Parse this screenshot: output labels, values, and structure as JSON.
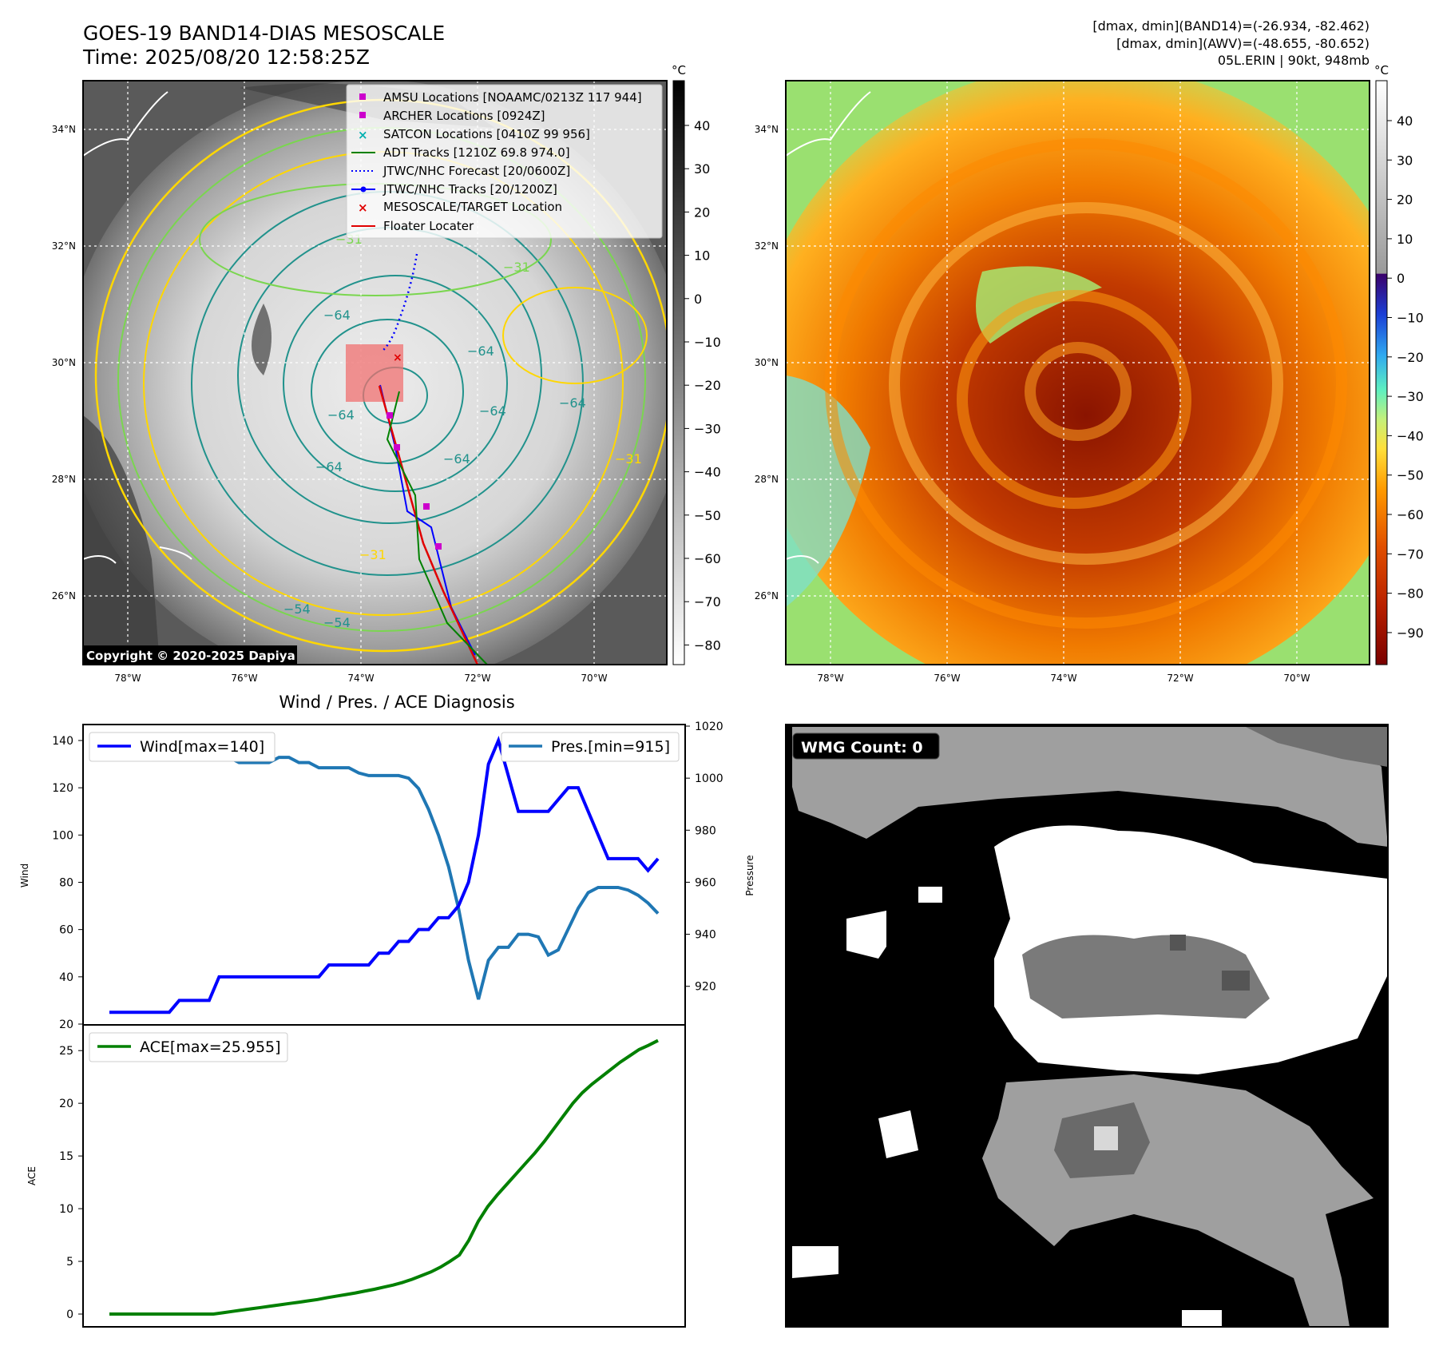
{
  "header": {
    "title_line1": "GOES-19 BAND14-DIAS MESOSCALE",
    "title_line2": "Time: 2025/08/20 12:58:25Z",
    "info_line1": "[dmax, dmin](BAND14)=(-26.934, -82.462)",
    "info_line2": "[dmax, dmin](AWV)=(-48.655, -80.652)",
    "info_line3": "05L.ERIN | 90kt, 948mb"
  },
  "maps": {
    "lat_labels": [
      "34°N",
      "32°N",
      "30°N",
      "28°N",
      "26°N"
    ],
    "lon_labels": [
      "78°W",
      "76°W",
      "74°W",
      "72°W",
      "70°W"
    ],
    "colorbar_unit": "°C",
    "colorbar1_ticks": [
      "40",
      "30",
      "20",
      "10",
      "0",
      "−10",
      "−20",
      "−30",
      "−40",
      "−50",
      "−60",
      "−70",
      "−80"
    ],
    "colorbar2_ticks": [
      "40",
      "30",
      "20",
      "10",
      "0",
      "−10",
      "−20",
      "−30",
      "−40",
      "−50",
      "−60",
      "−70",
      "−80",
      "−90"
    ],
    "copyright": "Copyright © 2020-2025 Dapiya",
    "contour_labels": [
      "−64",
      "−64",
      "−64",
      "−64",
      "−64",
      "−64",
      "−31",
      "−31",
      "−54",
      "−54",
      "−31",
      "−31",
      "−64"
    ],
    "legend": [
      "AMSU Locations [NOAAMC/0213Z 117 944]",
      "ARCHER Locations [0924Z]",
      "SATCON Locations [0410Z 99 956]",
      "ADT Tracks [1210Z 69.8 974.0]",
      "JTWC/NHC Forecast [20/0600Z]",
      "JTWC/NHC Tracks [20/1200Z]",
      "MESOSCALE/TARGET Location",
      "Floater Locater"
    ],
    "colors": {
      "ir_gray": "#cccccc",
      "awv_orange": "#e05a00",
      "awv_green": "#8fe070",
      "yellow_contour": "#ffd700",
      "green_contour": "#7ad64f",
      "teal_contour": "#21928c"
    }
  },
  "wmg": {
    "label": "WMG Count: 0"
  },
  "chart_data": [
    {
      "type": "line",
      "title": "Wind / Pres. / ACE Diagnosis",
      "ylabel": "Wind",
      "y2label": "Pressure",
      "ylim": [
        20,
        140
      ],
      "y2lim": [
        915,
        1020
      ],
      "y_ticks": [
        "140",
        "120",
        "100",
        "80",
        "60",
        "40",
        "20"
      ],
      "y2_ticks": [
        "1020",
        "1000",
        "980",
        "960",
        "940",
        "920"
      ],
      "series": [
        {
          "name": "Wind[max=140]",
          "color": "#0000ff",
          "values": [
            25,
            25,
            25,
            25,
            25,
            25,
            25,
            30,
            30,
            30,
            30,
            40,
            40,
            40,
            40,
            40,
            40,
            40,
            40,
            40,
            40,
            40,
            45,
            45,
            45,
            45,
            45,
            50,
            50,
            55,
            55,
            60,
            60,
            65,
            65,
            70,
            80,
            100,
            130,
            140,
            125,
            110,
            110,
            110,
            110,
            115,
            120,
            120,
            110,
            100,
            90,
            90,
            90,
            90,
            85,
            90
          ]
        },
        {
          "name": "Pres.[min=915]",
          "color": "#1f77b4",
          "values": [
            1015,
            1015,
            1010,
            1009,
            1008,
            1008,
            1008,
            1008,
            1008,
            1008,
            1008,
            1008,
            1008,
            1006,
            1006,
            1006,
            1006,
            1008,
            1008,
            1006,
            1006,
            1004,
            1004,
            1004,
            1004,
            1002,
            1001,
            1001,
            1001,
            1001,
            1000,
            996,
            988,
            978,
            966,
            950,
            930,
            915,
            930,
            935,
            935,
            940,
            940,
            939,
            932,
            934,
            942,
            950,
            956,
            958,
            958,
            958,
            957,
            955,
            952,
            948
          ]
        }
      ]
    },
    {
      "type": "line",
      "ylabel": "ACE",
      "ylim": [
        -1,
        27
      ],
      "y_ticks": [
        "25",
        "20",
        "15",
        "10",
        "5",
        "0"
      ],
      "series": [
        {
          "name": "ACE[max=25.955]",
          "color": "#008000",
          "values": [
            0,
            0,
            0,
            0,
            0,
            0,
            0,
            0,
            0,
            0,
            0,
            0,
            0.12,
            0.25,
            0.38,
            0.5,
            0.62,
            0.75,
            0.87,
            1.0,
            1.12,
            1.25,
            1.38,
            1.55,
            1.7,
            1.85,
            2.0,
            2.18,
            2.35,
            2.55,
            2.75,
            3.0,
            3.3,
            3.65,
            4.0,
            4.45,
            5.0,
            5.6,
            7.0,
            8.8,
            10.2,
            11.3,
            12.3,
            13.3,
            14.3,
            15.3,
            16.4,
            17.6,
            18.8,
            20.0,
            21.0,
            21.8,
            22.5,
            23.2,
            23.9,
            24.5,
            25.1,
            25.5,
            25.955
          ]
        }
      ]
    }
  ]
}
